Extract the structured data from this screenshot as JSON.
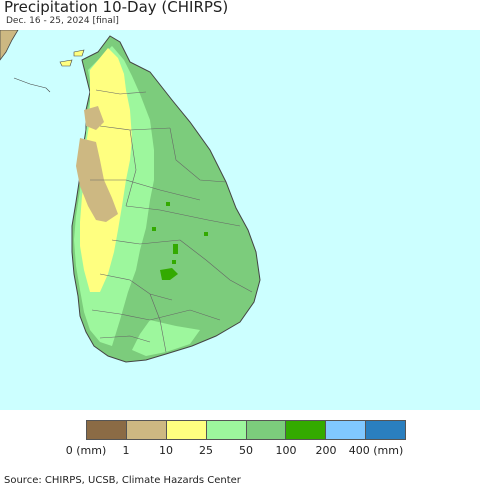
{
  "title": "Precipitation 10-Day (CHIRPS)",
  "subtitle": "Dec. 16 - 25, 2024 [final]",
  "legend": {
    "colors": [
      "#8b6b45",
      "#cdb882",
      "#ffff80",
      "#9df79d",
      "#7ccc7c",
      "#33aa00",
      "#80c8ff",
      "#2a7fbf"
    ],
    "labels": [
      "0 (mm)",
      "1",
      "10",
      "25",
      "50",
      "100",
      "200",
      "400 (mm)"
    ]
  },
  "map": {
    "ocean_color": "#ccffff",
    "land_colors": {
      "driest": "#cdb882",
      "dry": "#ffff80",
      "moderate": "#9df79d",
      "wet": "#7ccc7c",
      "wettest": "#33aa00"
    }
  },
  "source": "Source: CHIRPS, UCSB, Climate Hazards Center"
}
